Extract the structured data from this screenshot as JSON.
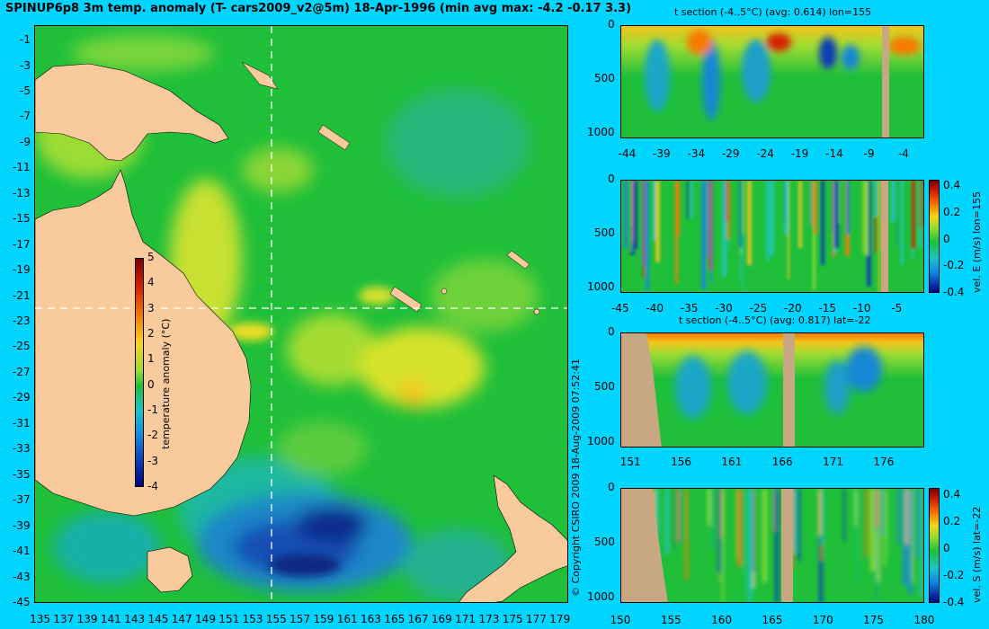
{
  "title": "SPINUP6p8 3m temp. anomaly (T- cars2009_v2@5m) 18-Apr-1996 (min avg max: -4.2 -0.17 3.3)",
  "copyright": "© Copyright CSIRO 2009   18-Aug-2009 07:52:41",
  "colors": {
    "background": "#00d5ff",
    "land": "#f9cb9c",
    "section_land": "#c8a882",
    "ocean_neutral": "#1fbf3a",
    "crosshair": "#ffffff"
  },
  "chart_data": [
    {
      "id": "map",
      "type": "heatmap",
      "title": "SPINUP6p8 3m temp. anomaly (T- cars2009_v2@5m) 18-Apr-1996 (min avg max: -4.2 -0.17 3.3)",
      "x_ticks": [
        "135",
        "137",
        "139",
        "141",
        "143",
        "145",
        "147",
        "149",
        "151",
        "153",
        "155",
        "157",
        "159",
        "161",
        "163",
        "165",
        "167",
        "169",
        "171",
        "173",
        "175",
        "177",
        "179"
      ],
      "y_ticks": [
        "-1",
        "-3",
        "-5",
        "-7",
        "-9",
        "-11",
        "-13",
        "-15",
        "-17",
        "-19",
        "-21",
        "-23",
        "-25",
        "-27",
        "-29",
        "-31",
        "-33",
        "-35",
        "-37",
        "-39",
        "-41",
        "-43",
        "-45"
      ],
      "xlim": [
        134.5,
        179.7
      ],
      "ylim": [
        -45,
        0.2
      ],
      "crosshair": {
        "lon": 155,
        "lat": -22
      },
      "colorbar": {
        "label": "temperature anomaly (°C)",
        "ticks": [
          "5",
          "4",
          "3",
          "2",
          "1",
          "0",
          "-1",
          "-2",
          "-3",
          "-4"
        ],
        "range": [
          -4,
          5
        ]
      }
    },
    {
      "id": "sec1",
      "type": "heatmap",
      "title": "t section (-4..5°C) (avg: 0.614) lon=155",
      "x_ticks": [
        "-44",
        "-39",
        "-34",
        "-29",
        "-24",
        "-19",
        "-14",
        "-9",
        "-4"
      ],
      "y_ticks": [
        "0",
        "500",
        "1000"
      ],
      "xlim": [
        -45,
        -1
      ],
      "ylim": [
        1050,
        0
      ]
    },
    {
      "id": "sec2",
      "type": "heatmap",
      "title": "",
      "x_ticks": [
        "-45",
        "-40",
        "-35",
        "-30",
        "-25",
        "-20",
        "-15",
        "-10",
        "-5"
      ],
      "y_ticks": [
        "0",
        "500",
        "1000"
      ],
      "xlim": [
        -45,
        -1
      ],
      "ylim": [
        1050,
        0
      ],
      "colorbar": {
        "label": "vel. E (m/s) lon=155",
        "ticks": [
          "0.4",
          "0.2",
          "0",
          "-0.2",
          "-0.4"
        ],
        "range": [
          -0.4,
          0.45
        ]
      }
    },
    {
      "id": "sec3",
      "type": "heatmap",
      "title": "t section (-4..5°C) (avg: 0.817) lat=-22",
      "x_ticks": [
        "151",
        "156",
        "161",
        "166",
        "171",
        "176"
      ],
      "y_ticks": [
        "0",
        "500",
        "1000"
      ],
      "xlim": [
        150,
        180
      ],
      "ylim": [
        1050,
        0
      ]
    },
    {
      "id": "sec4",
      "type": "heatmap",
      "title": "",
      "x_ticks": [
        "150",
        "155",
        "160",
        "165",
        "170",
        "175",
        "180"
      ],
      "y_ticks": [
        "0",
        "500",
        "1000"
      ],
      "xlim": [
        150,
        180
      ],
      "ylim": [
        1050,
        0
      ],
      "colorbar": {
        "label": "vel. S (m/s) lat=-22",
        "ticks": [
          "0.4",
          "0.2",
          "0",
          "-0.2",
          "-0.4"
        ],
        "range": [
          -0.4,
          0.45
        ]
      }
    }
  ]
}
